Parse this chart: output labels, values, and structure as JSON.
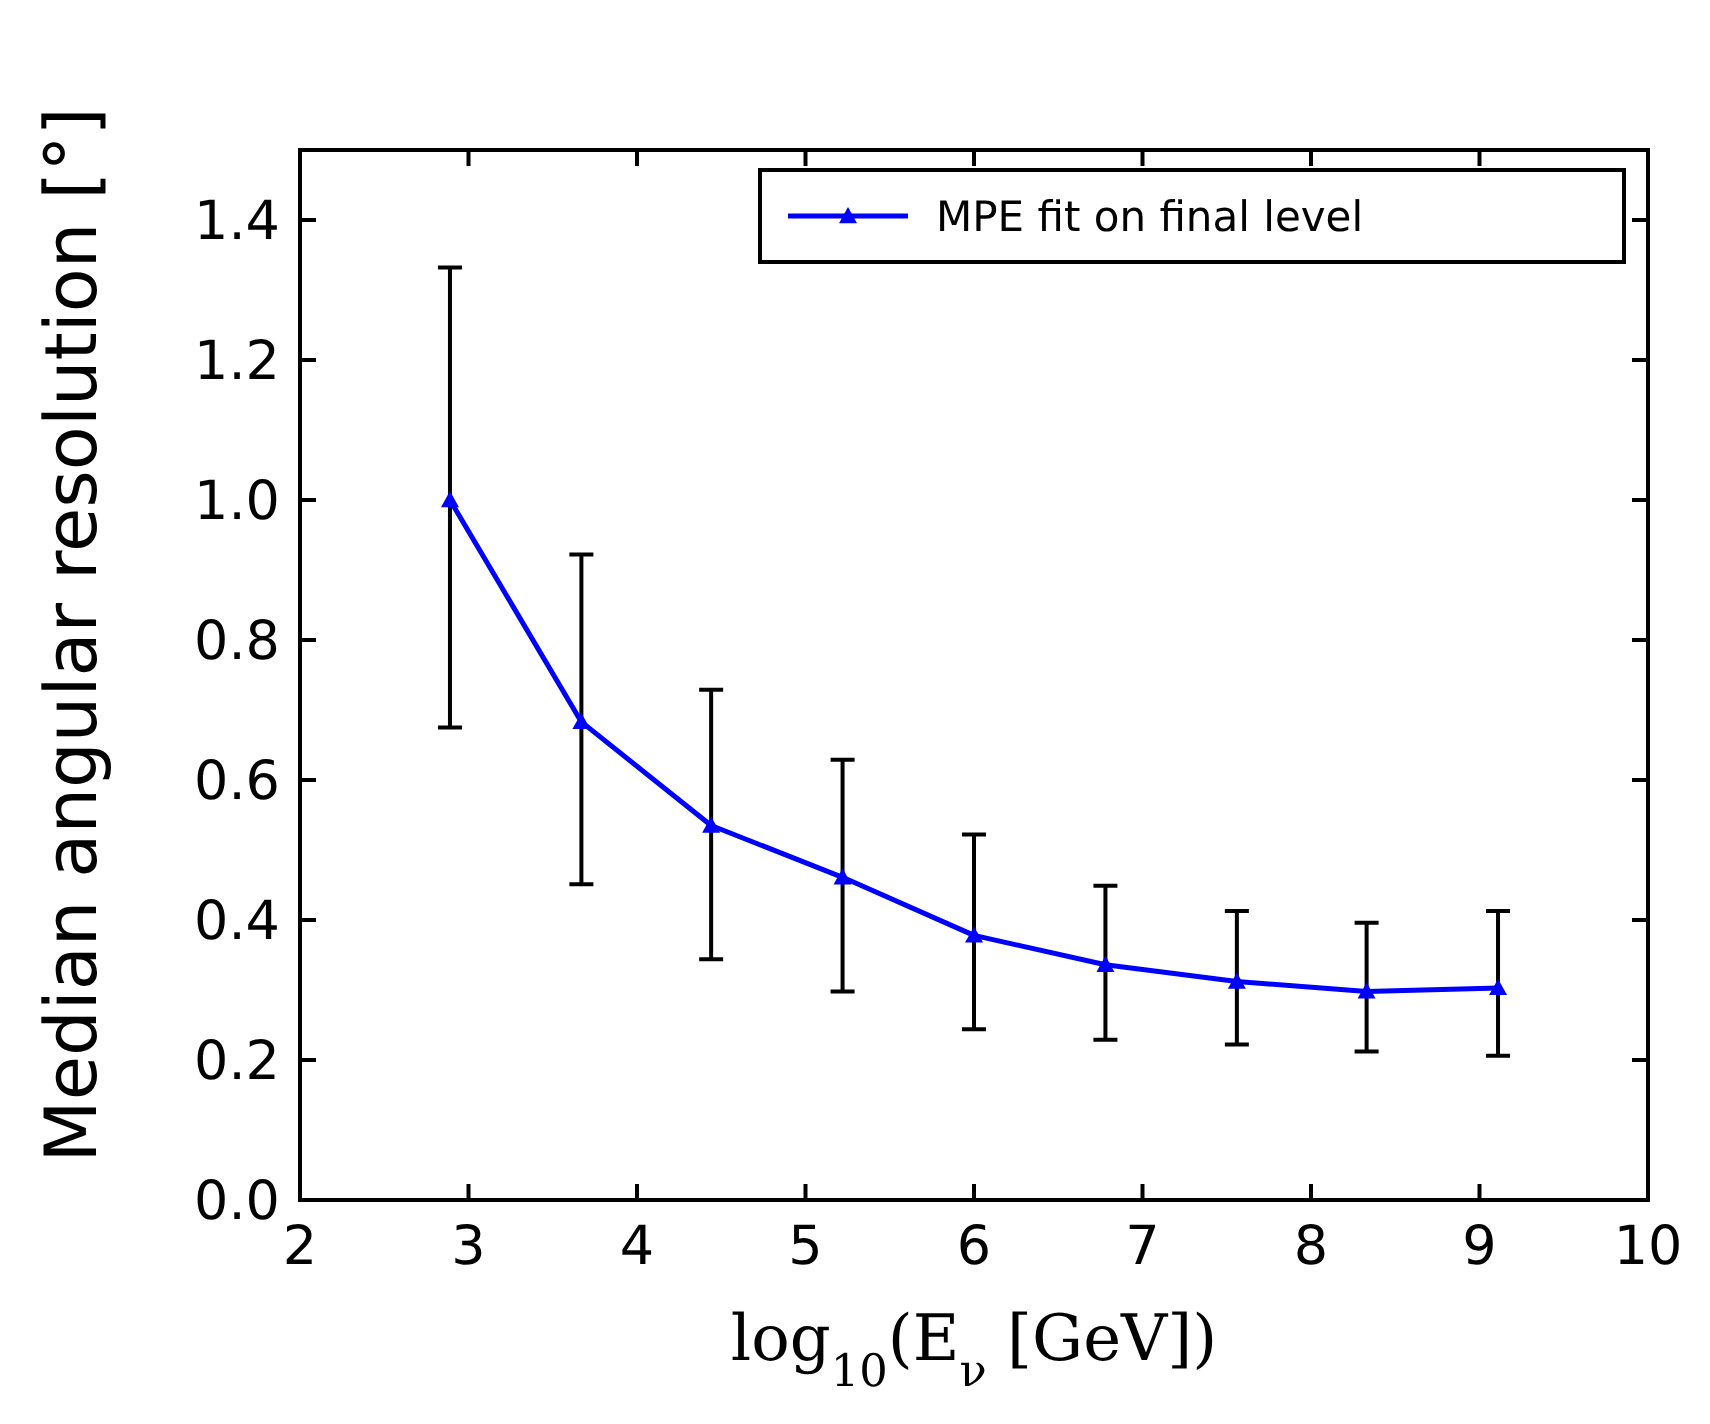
{
  "chart_data": {
    "type": "line",
    "xlabel": "log$_{10}$(E$_{ν}$ [GeV])",
    "ylabel": "Median angular resolution [°]",
    "x": [
      2.89,
      3.67,
      4.44,
      5.22,
      6.0,
      6.78,
      7.56,
      8.33,
      9.11
    ],
    "series": [
      {
        "name": "MPE fit on final level",
        "color": "#0000ff",
        "values": [
          1.0,
          0.683,
          0.535,
          0.461,
          0.378,
          0.336,
          0.312,
          0.298,
          0.303
        ],
        "errors": [
          [
            0.675,
            1.332
          ],
          [
            0.451,
            0.922
          ],
          [
            0.344,
            0.729
          ],
          [
            0.298,
            0.629
          ],
          [
            0.244,
            0.522
          ],
          [
            0.229,
            0.449
          ],
          [
            0.222,
            0.413
          ],
          [
            0.212,
            0.396
          ],
          [
            0.206,
            0.413
          ]
        ]
      }
    ],
    "xlim": [
      2,
      10
    ],
    "ylim": [
      0,
      1.5
    ],
    "xticks": [
      2,
      3,
      4,
      5,
      6,
      7,
      8,
      9,
      10
    ],
    "yticks": [
      {
        "value": 0,
        "label": "0.0"
      },
      {
        "value": 0.2,
        "label": "0.2"
      },
      {
        "value": 0.4,
        "label": "0.4"
      },
      {
        "value": 0.6,
        "label": "0.6"
      },
      {
        "value": 0.8,
        "label": "0.8"
      },
      {
        "value": 1.0,
        "label": "1.0"
      },
      {
        "value": 1.2,
        "label": "1.2"
      },
      {
        "value": 1.4,
        "label": "1.4"
      }
    ],
    "grid": false,
    "legend": "top right",
    "marker": "triangle",
    "line_style": "solid"
  }
}
